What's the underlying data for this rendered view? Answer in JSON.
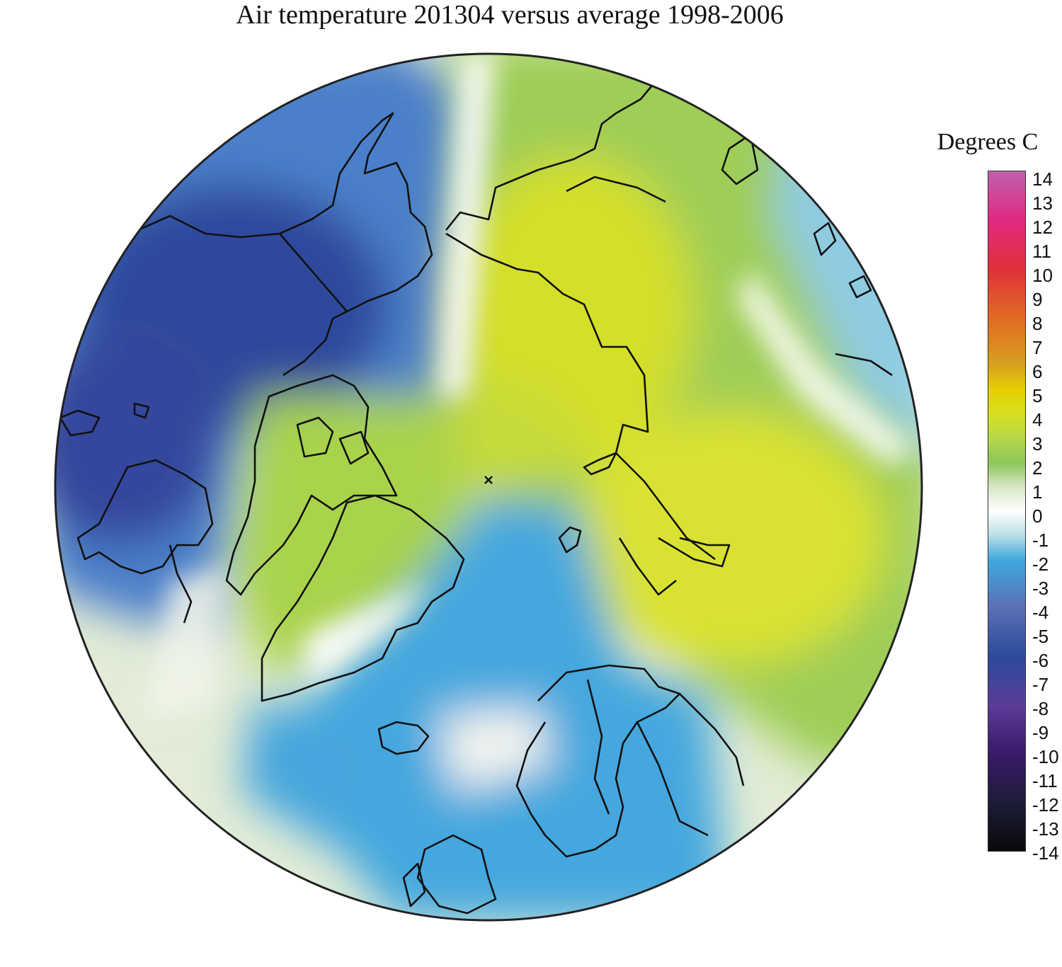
{
  "title": "Air temperature 201304 versus average 1998-2006",
  "legend": {
    "title": "Degrees C",
    "ticks": [
      "14",
      "13",
      "12",
      "11",
      "10",
      "9",
      "8",
      "7",
      "6",
      "5",
      "4",
      "3",
      "2",
      "1",
      "0",
      "-1",
      "-2",
      "-3",
      "-4",
      "-5",
      "-6",
      "-7",
      "-8",
      "-9",
      "-10",
      "-11",
      "-12",
      "-13",
      "-14"
    ],
    "range": [
      -14,
      14
    ],
    "colors": {
      "14": "#c060b0",
      "12": "#e02a80",
      "10": "#e0303a",
      "8": "#e06a24",
      "6": "#d8a020",
      "5": "#e6cf00",
      "4": "#d6e020",
      "3": "#b7d84a",
      "2": "#8cc65a",
      "1": "#d8e6c8",
      "0": "#ffffff",
      "-1": "#b9dfe6",
      "-2": "#3fa9de",
      "-4": "#5b6fb4",
      "-6": "#2b4a9a",
      "-8": "#5a3c98",
      "-10": "#3a1a6a",
      "-12": "#1c1c38",
      "-14": "#0a0a0a"
    }
  },
  "map": {
    "projection": "north-polar-stereographic",
    "pole_marker": "x-icon",
    "regions": [
      "Alaska",
      "Canadian Arctic Archipelago",
      "Greenland",
      "Iceland",
      "Scandinavia",
      "British Isles",
      "Siberia",
      "Svalbard",
      "Novaya Zemlya"
    ]
  }
}
